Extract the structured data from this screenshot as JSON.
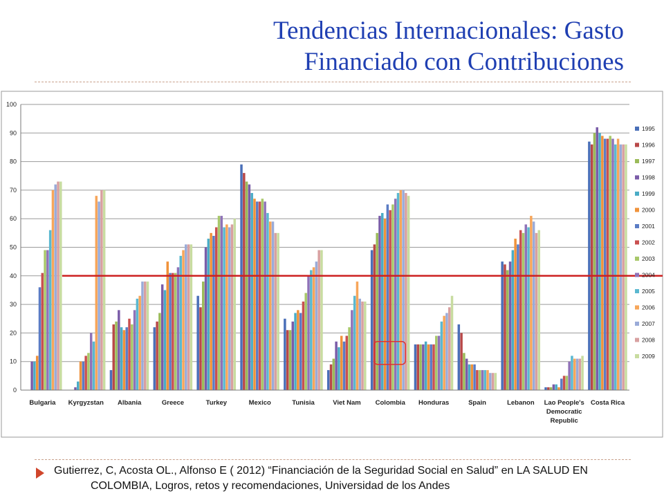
{
  "slide": {
    "title_line1": "Tendencias Internacionales: Gasto",
    "title_line2": "Financiado con Contribuciones",
    "footer_line1": "Gutierrez, C, Acosta OL., Alfonso E ( 2012) “Financiación de la Seguridad Social en Salud” en LA SALUD EN",
    "footer_line2": "COLOMBIA, Logros, retos y recomendaciones, Universidad de los Andes"
  },
  "colors": {
    "title": "#1f3fb2",
    "reference_line": "#cc2020",
    "highlight_box": "#e03030",
    "series": [
      "#4a6fb8",
      "#b84848",
      "#9bbb59",
      "#7a5ca8",
      "#4aacc6",
      "#f0923a",
      "#5b7cc4",
      "#c95050",
      "#a8c86a",
      "#8f72b8",
      "#5ab8d0",
      "#f7a65a",
      "#9aabd8",
      "#d8a0a0",
      "#c8dca0"
    ]
  },
  "chart_data": {
    "type": "bar",
    "categories": [
      "Bulgaria",
      "Kyrgyzstan",
      "Albania",
      "Greece",
      "Turkey",
      "Mexico",
      "Tunisia",
      "Viet Nam",
      "Colombia",
      "Honduras",
      "Spain",
      "Lebanon",
      "Lao People's Democratic Republic",
      "Costa Rica"
    ],
    "category_label_lines": [
      [
        "Bulgaria"
      ],
      [
        "Kyrgyzstan"
      ],
      [
        "Albania"
      ],
      [
        "Greece"
      ],
      [
        "Turkey"
      ],
      [
        "Mexico"
      ],
      [
        "Tunisia"
      ],
      [
        "Viet Nam"
      ],
      [
        "Colombia"
      ],
      [
        "Honduras"
      ],
      [
        "Spain"
      ],
      [
        "Lebanon"
      ],
      [
        "Lao People's",
        "Democratic",
        "Republic"
      ],
      [
        "Costa Rica"
      ]
    ],
    "ylim": [
      0,
      100
    ],
    "yticks": [
      "0",
      "10",
      "20",
      "30",
      "40",
      "50",
      "60",
      "70",
      "80",
      "90",
      "100"
    ],
    "grid": true,
    "legend_position": "right",
    "reference_line_value": 40,
    "highlight": {
      "category": "Colombia",
      "from": 9,
      "to": 17
    },
    "series": [
      {
        "name": "1995",
        "values": [
          0,
          0,
          7,
          22,
          33,
          79,
          25,
          7,
          49,
          16,
          23,
          45,
          1,
          87
        ]
      },
      {
        "name": "1996",
        "values": [
          0,
          0,
          23,
          24,
          29,
          76,
          21,
          9,
          51,
          16,
          20,
          44,
          1,
          86
        ]
      },
      {
        "name": "1997",
        "values": [
          0,
          0,
          24,
          27,
          38,
          73,
          21,
          11,
          55,
          16,
          13,
          42,
          1,
          90
        ]
      },
      {
        "name": "1998",
        "values": [
          10,
          1,
          28,
          37,
          50,
          72,
          24,
          17,
          61,
          16,
          11,
          45,
          2,
          92
        ]
      },
      {
        "name": "1999",
        "values": [
          10,
          3,
          22,
          35,
          53,
          69,
          27,
          15,
          62,
          17,
          9,
          49,
          2,
          90
        ]
      },
      {
        "name": "2000",
        "values": [
          12,
          10,
          21,
          45,
          55,
          67,
          28,
          19,
          60,
          16,
          9,
          53,
          1,
          89
        ]
      },
      {
        "name": "2001",
        "values": [
          36,
          10,
          22,
          41,
          54,
          66,
          27,
          17,
          65,
          16,
          9,
          51,
          4,
          88
        ]
      },
      {
        "name": "2002",
        "values": [
          41,
          12,
          25,
          41,
          57,
          66,
          31,
          19,
          63,
          16,
          7,
          56,
          5,
          88
        ]
      },
      {
        "name": "2003",
        "values": [
          49,
          13,
          23,
          41,
          61,
          67,
          34,
          22,
          65,
          19,
          7,
          55,
          5,
          89
        ]
      },
      {
        "name": "2004",
        "values": [
          49,
          20,
          28,
          43,
          61,
          66,
          40,
          28,
          67,
          19,
          7,
          58,
          10,
          88
        ]
      },
      {
        "name": "2005",
        "values": [
          56,
          17,
          32,
          47,
          57,
          62,
          42,
          33,
          69,
          24,
          7,
          57,
          12,
          86
        ]
      },
      {
        "name": "2006",
        "values": [
          70,
          68,
          33,
          49,
          58,
          59,
          43,
          38,
          70,
          26,
          7,
          61,
          11,
          88
        ]
      },
      {
        "name": "2007",
        "values": [
          72,
          66,
          38,
          51,
          57,
          59,
          45,
          32,
          70,
          27,
          6,
          59,
          11,
          86
        ]
      },
      {
        "name": "2008",
        "values": [
          73,
          70,
          38,
          51,
          58,
          55,
          49,
          31,
          69,
          29,
          6,
          55,
          11,
          86
        ]
      },
      {
        "name": "2009",
        "values": [
          73,
          70,
          38,
          51,
          60,
          55,
          49,
          31,
          68,
          33,
          6,
          56,
          12,
          86
        ]
      }
    ]
  }
}
